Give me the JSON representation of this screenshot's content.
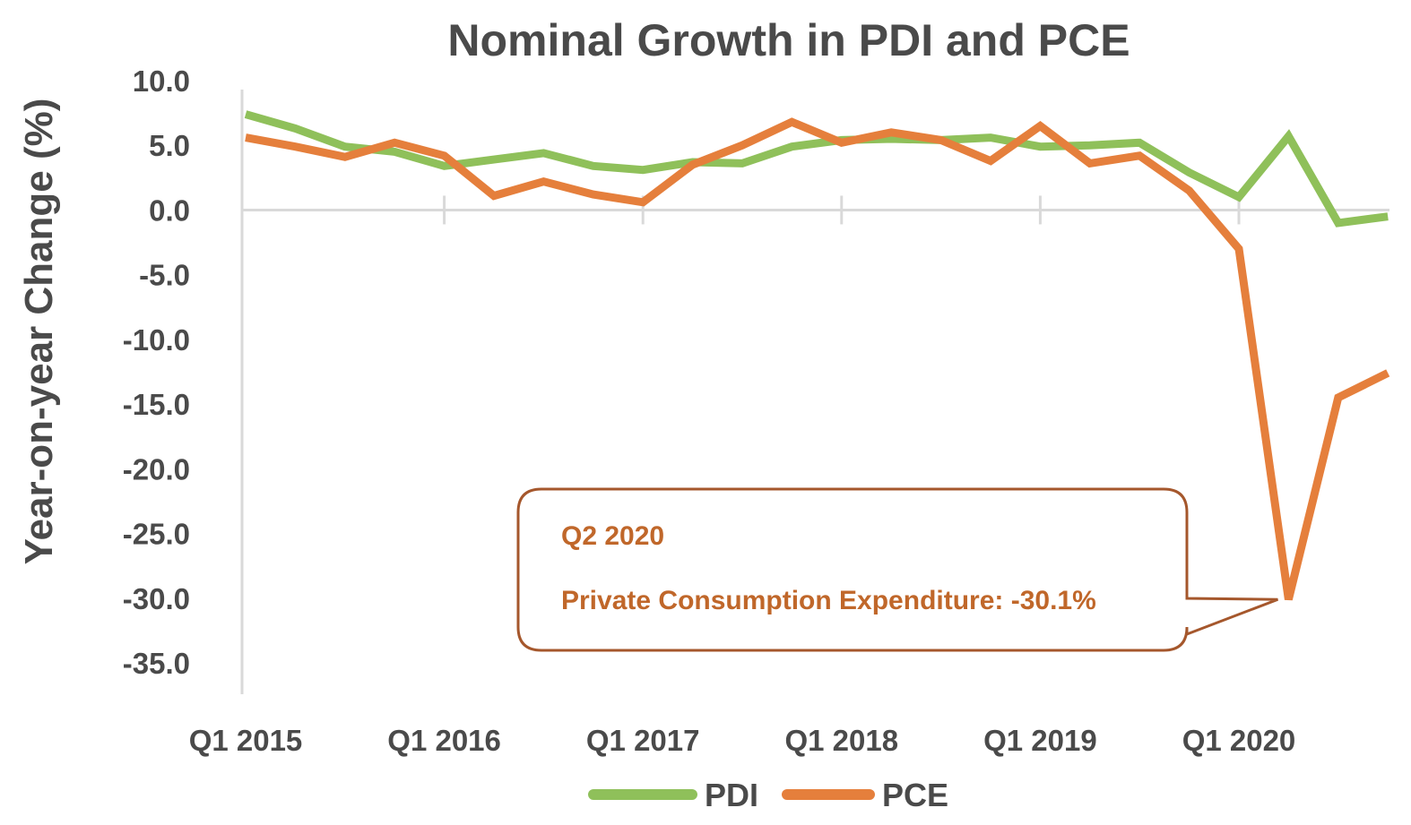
{
  "chart_data": {
    "type": "line",
    "title": "Nominal Growth in PDI and PCE",
    "xlabel": "",
    "ylabel": "Year-on-year Change (%)",
    "ylim": [
      -35,
      10
    ],
    "y_ticks": [
      "10.0",
      "5.0",
      "0.0",
      "-5.0",
      "-10.0",
      "-15.0",
      "-20.0",
      "-25.0",
      "-30.0",
      "-35.0"
    ],
    "x_tick_labels": [
      "Q1 2015",
      "Q1 2016",
      "Q1 2017",
      "Q1 2018",
      "Q1 2019",
      "Q1 2020"
    ],
    "categories": [
      "Q1 2015",
      "Q2 2015",
      "Q3 2015",
      "Q4 2015",
      "Q1 2016",
      "Q2 2016",
      "Q3 2016",
      "Q4 2016",
      "Q1 2017",
      "Q2 2017",
      "Q3 2017",
      "Q4 2017",
      "Q1 2018",
      "Q2 2018",
      "Q3 2018",
      "Q4 2018",
      "Q1 2019",
      "Q2 2019",
      "Q3 2019",
      "Q4 2019",
      "Q1 2020",
      "Q2 2020",
      "Q3 2020",
      "Q4 2020"
    ],
    "grid": false,
    "legend_position": "bottom",
    "series": [
      {
        "name": "PDI",
        "color": "#8fc05a",
        "values": [
          7.4,
          6.3,
          4.9,
          4.5,
          3.4,
          3.9,
          4.4,
          3.4,
          3.1,
          3.7,
          3.6,
          4.9,
          5.4,
          5.5,
          5.4,
          5.6,
          4.9,
          5.0,
          5.2,
          2.9,
          1.0,
          5.7,
          -1.0,
          -0.5
        ]
      },
      {
        "name": "PCE",
        "color": "#e57f3c",
        "values": [
          5.6,
          4.9,
          4.1,
          5.2,
          4.2,
          1.1,
          2.2,
          1.2,
          0.6,
          3.5,
          5.0,
          6.8,
          5.2,
          6.0,
          5.4,
          3.8,
          6.5,
          3.6,
          4.2,
          1.5,
          -3.0,
          -30.1,
          -14.5,
          -12.6
        ]
      }
    ],
    "annotation": {
      "line1": "Q2 2020",
      "line2": "Private Consumption Expenditure: -30.1%",
      "target_category": "Q2 2020",
      "target_value": -30.1
    }
  }
}
